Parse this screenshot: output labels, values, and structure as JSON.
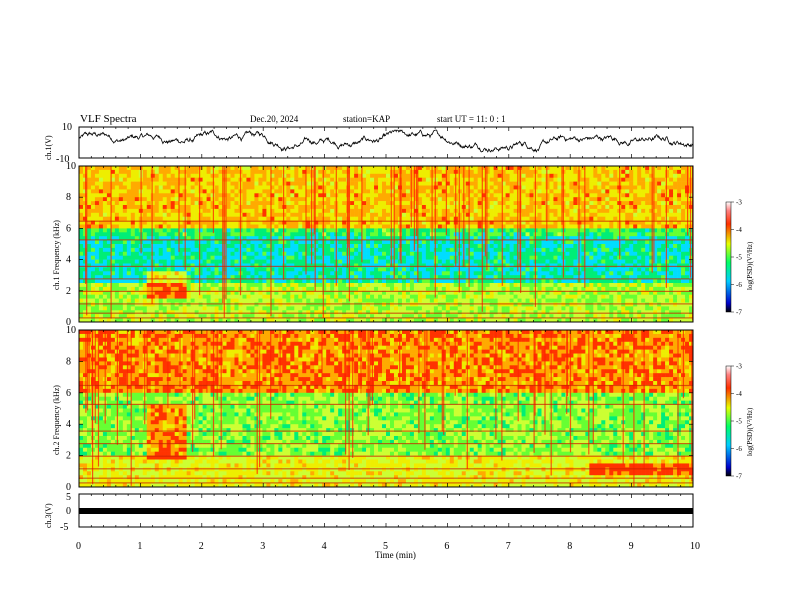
{
  "header": {
    "title": "VLF Spectra",
    "date": "Dec.20, 2024",
    "station": "station=KAP",
    "start": "start UT = 11: 0 : 1"
  },
  "chart_data": [
    {
      "type": "line",
      "panel": "ch1-waveform",
      "ylabel": "ch.1(V)",
      "ylim": [
        -10,
        10
      ],
      "yticks": [
        "10",
        "-10"
      ],
      "xlim": [
        0,
        10
      ],
      "color": "#000000"
    },
    {
      "type": "heatmap",
      "panel": "ch1-spectrogram",
      "ylabel": "ch.1 Frequency (kHz)",
      "ylim": [
        0,
        10
      ],
      "yticks": [
        "0",
        "2",
        "4",
        "6",
        "8",
        "10"
      ],
      "xlim": [
        0,
        10
      ],
      "colorbar": {
        "label": "log(PSD)(V²/Hz)",
        "range": [
          -7,
          -3
        ],
        "ticks": [
          "-3",
          "-4",
          "-5",
          "-6",
          "-7"
        ]
      }
    },
    {
      "type": "heatmap",
      "panel": "ch2-spectrogram",
      "ylabel": "ch.2 Frequency (kHz)",
      "ylim": [
        0,
        10
      ],
      "yticks": [
        "0",
        "2",
        "4",
        "6",
        "8",
        "10"
      ],
      "xlim": [
        0,
        10
      ],
      "colorbar": {
        "label": "log(PSD)(V²/Hz)",
        "range": [
          -7,
          -3
        ],
        "ticks": [
          "-3",
          "-4",
          "-5",
          "-6",
          "-7"
        ]
      }
    },
    {
      "type": "line",
      "panel": "ch3-waveform",
      "ylabel": "ch.3(V)",
      "ylim": [
        -5,
        5
      ],
      "yticks": [
        "5",
        "0",
        "-5"
      ],
      "xlim": [
        0,
        10
      ],
      "approx_value": -0.3,
      "color": "#000000"
    }
  ],
  "xaxis": {
    "label": "Time (min)",
    "ticks": [
      "0",
      "1",
      "2",
      "3",
      "4",
      "5",
      "6",
      "7",
      "8",
      "9",
      "10"
    ]
  }
}
